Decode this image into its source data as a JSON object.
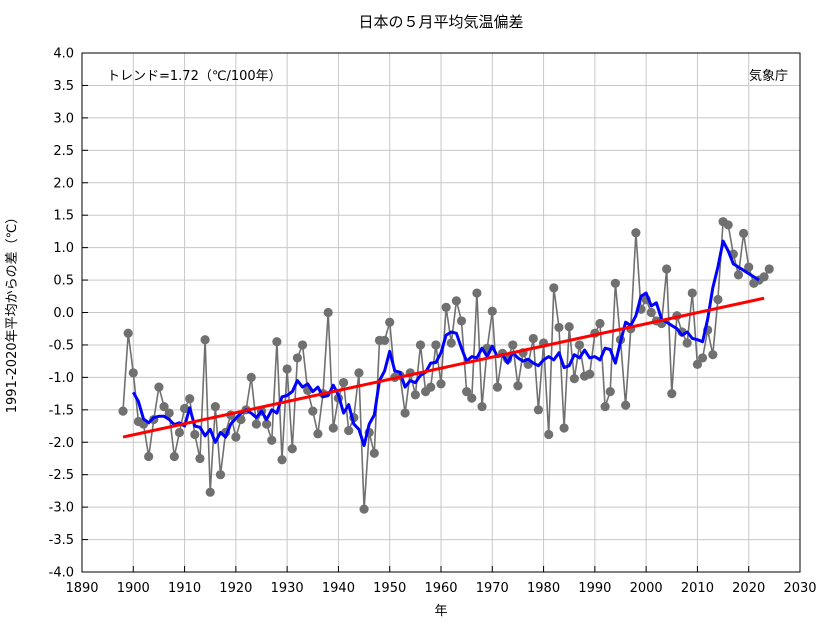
{
  "chart_data": {
    "type": "line",
    "title": "日本の５月平均気温偏差",
    "xlabel": "年",
    "ylabel": "1991-2020年平均からの差（℃）",
    "xlim": [
      1890,
      2030
    ],
    "ylim": [
      -4.0,
      4.0
    ],
    "x_ticks": [
      1890,
      1900,
      1910,
      1920,
      1930,
      1940,
      1950,
      1960,
      1970,
      1980,
      1990,
      2000,
      2010,
      2020,
      2030
    ],
    "y_ticks": [
      -4.0,
      -3.5,
      -3.0,
      -2.5,
      -2.0,
      -1.5,
      -1.0,
      -0.5,
      0.0,
      0.5,
      1.0,
      1.5,
      2.0,
      2.5,
      3.0,
      3.5,
      4.0
    ],
    "y_tick_labels": [
      "-4.0",
      "-3.5",
      "-3.0",
      "-2.5",
      "-2.0",
      "-1.5",
      "-1.0",
      "-0.5",
      "0.0",
      "0.5",
      "1.0",
      "1.5",
      "2.0",
      "2.5",
      "3.0",
      "3.5",
      "4.0"
    ],
    "grid": true,
    "annotations": {
      "trend": "トレンド=1.72（℃/100年）",
      "source": "気象庁"
    },
    "colors": {
      "annual": "#707070",
      "moving_avg": "#0000ff",
      "trend": "#ff0000",
      "grid": "#c8c8c8"
    },
    "series": [
      {
        "style": "gray line with circle markers",
        "x": [
          1898,
          1899,
          1900,
          1901,
          1902,
          1903,
          1904,
          1905,
          1906,
          1907,
          1908,
          1909,
          1910,
          1911,
          1912,
          1913,
          1914,
          1915,
          1916,
          1917,
          1918,
          1919,
          1920,
          1921,
          1922,
          1923,
          1924,
          1925,
          1926,
          1927,
          1928,
          1929,
          1930,
          1931,
          1932,
          1933,
          1934,
          1935,
          1936,
          1937,
          1938,
          1939,
          1940,
          1941,
          1942,
          1943,
          1944,
          1945,
          1946,
          1947,
          1948,
          1949,
          1950,
          1951,
          1952,
          1953,
          1954,
          1955,
          1956,
          1957,
          1958,
          1959,
          1960,
          1961,
          1962,
          1963,
          1964,
          1965,
          1966,
          1967,
          1968,
          1969,
          1970,
          1971,
          1972,
          1973,
          1974,
          1975,
          1976,
          1977,
          1978,
          1979,
          1980,
          1981,
          1982,
          1983,
          1984,
          1985,
          1986,
          1987,
          1988,
          1989,
          1990,
          1991,
          1992,
          1993,
          1994,
          1995,
          1996,
          1997,
          1998,
          1999,
          2000,
          2001,
          2002,
          2003,
          2004,
          2005,
          2006,
          2007,
          2008,
          2009,
          2010,
          2011,
          2012,
          2013,
          2014,
          2015,
          2016,
          2017,
          2018,
          2019,
          2020,
          2021,
          2022,
          2023,
          2024
        ],
        "values": [
          -1.52,
          -0.32,
          -0.93,
          -1.68,
          -1.72,
          -2.22,
          -1.65,
          -1.15,
          -1.45,
          -1.55,
          -2.22,
          -1.85,
          -1.48,
          -1.33,
          -1.88,
          -2.25,
          -0.42,
          -2.77,
          -1.45,
          -2.5,
          -1.85,
          -1.58,
          -1.92,
          -1.65,
          -1.5,
          -1.0,
          -1.72,
          -1.52,
          -1.72,
          -1.97,
          -0.45,
          -2.27,
          -0.87,
          -2.1,
          -0.7,
          -0.5,
          -1.2,
          -1.52,
          -1.87,
          -1.25,
          0.0,
          -1.78,
          -1.32,
          -1.08,
          -1.82,
          -1.62,
          -0.93,
          -3.03,
          -1.85,
          -2.17,
          -0.43,
          -0.43,
          -0.15,
          -1.0,
          -0.97,
          -1.55,
          -0.93,
          -1.27,
          -0.5,
          -1.22,
          -1.15,
          -0.5,
          -1.1,
          0.08,
          -0.47,
          0.18,
          -0.13,
          -1.22,
          -1.32,
          0.3,
          -1.45,
          -0.55,
          0.02,
          -1.15,
          -0.63,
          -0.72,
          -0.5,
          -1.13,
          -0.62,
          -0.8,
          -0.4,
          -1.5,
          -0.47,
          -1.88,
          0.38,
          -0.23,
          -1.78,
          -0.22,
          -1.02,
          -0.5,
          -0.98,
          -0.95,
          -0.32,
          -0.17,
          -1.45,
          -1.22,
          0.45,
          -0.42,
          -1.43,
          -0.25,
          1.23,
          0.05,
          0.2,
          0.0,
          -0.13,
          -0.17,
          0.67,
          -1.25,
          -0.05,
          -0.3,
          -0.47,
          0.3,
          -0.8,
          -0.7,
          -0.27,
          -0.65,
          0.2,
          1.4,
          1.35,
          0.9,
          0.58,
          1.22,
          0.7,
          0.45,
          0.5,
          0.55,
          0.67
        ]
      },
      {
        "style": "blue 5-year running mean",
        "x": [
          1900,
          1901,
          1902,
          1903,
          1904,
          1905,
          1906,
          1907,
          1908,
          1909,
          1910,
          1911,
          1912,
          1913,
          1914,
          1915,
          1916,
          1917,
          1918,
          1919,
          1920,
          1921,
          1922,
          1923,
          1924,
          1925,
          1926,
          1927,
          1928,
          1929,
          1930,
          1931,
          1932,
          1933,
          1934,
          1935,
          1936,
          1937,
          1938,
          1939,
          1940,
          1941,
          1942,
          1943,
          1944,
          1945,
          1946,
          1947,
          1948,
          1949,
          1950,
          1951,
          1952,
          1953,
          1954,
          1955,
          1956,
          1957,
          1958,
          1959,
          1960,
          1961,
          1962,
          1963,
          1964,
          1965,
          1966,
          1967,
          1968,
          1969,
          1970,
          1971,
          1972,
          1973,
          1974,
          1975,
          1976,
          1977,
          1978,
          1979,
          1980,
          1981,
          1982,
          1983,
          1984,
          1985,
          1986,
          1987,
          1988,
          1989,
          1990,
          1991,
          1992,
          1993,
          1994,
          1995,
          1996,
          1997,
          1998,
          1999,
          2000,
          2001,
          2002,
          2003,
          2004,
          2005,
          2006,
          2007,
          2008,
          2009,
          2010,
          2011,
          2012,
          2013,
          2014,
          2015,
          2016,
          2017,
          2018,
          2019,
          2020,
          2021,
          2022
        ],
        "values": [
          -1.23,
          -1.37,
          -1.64,
          -1.7,
          -1.62,
          -1.6,
          -1.6,
          -1.65,
          -1.73,
          -1.7,
          -1.75,
          -1.47,
          -1.75,
          -1.77,
          -1.9,
          -1.8,
          -2.0,
          -1.85,
          -1.92,
          -1.72,
          -1.63,
          -1.55,
          -1.5,
          -1.55,
          -1.62,
          -1.52,
          -1.65,
          -1.5,
          -1.55,
          -1.3,
          -1.28,
          -1.22,
          -1.05,
          -1.15,
          -1.1,
          -1.22,
          -1.15,
          -1.3,
          -1.28,
          -1.12,
          -1.27,
          -1.55,
          -1.42,
          -1.72,
          -1.8,
          -2.05,
          -1.72,
          -1.58,
          -1.05,
          -0.9,
          -0.6,
          -0.9,
          -0.92,
          -1.15,
          -1.05,
          -1.08,
          -0.97,
          -0.92,
          -0.78,
          -0.77,
          -0.62,
          -0.35,
          -0.3,
          -0.32,
          -0.55,
          -0.75,
          -0.68,
          -0.7,
          -0.55,
          -0.68,
          -0.52,
          -0.68,
          -0.65,
          -0.78,
          -0.62,
          -0.7,
          -0.75,
          -0.72,
          -0.78,
          -0.82,
          -0.73,
          -0.68,
          -0.73,
          -0.62,
          -0.85,
          -0.82,
          -0.65,
          -0.7,
          -0.58,
          -0.7,
          -0.68,
          -0.73,
          -0.55,
          -0.57,
          -0.78,
          -0.45,
          -0.15,
          -0.2,
          -0.05,
          0.25,
          0.3,
          0.1,
          0.15,
          -0.1,
          -0.15,
          -0.2,
          -0.25,
          -0.35,
          -0.3,
          -0.4,
          -0.42,
          -0.45,
          -0.1,
          0.38,
          0.7,
          1.1,
          0.95,
          0.75,
          0.7,
          0.65,
          0.6,
          0.55,
          0.5
        ],
        "note": "values after 2018 approximate; line ends near 2022"
      },
      {
        "style": "red linear trend",
        "x": [
          1898,
          2023
        ],
        "values": [
          -1.92,
          0.22
        ]
      }
    ]
  }
}
